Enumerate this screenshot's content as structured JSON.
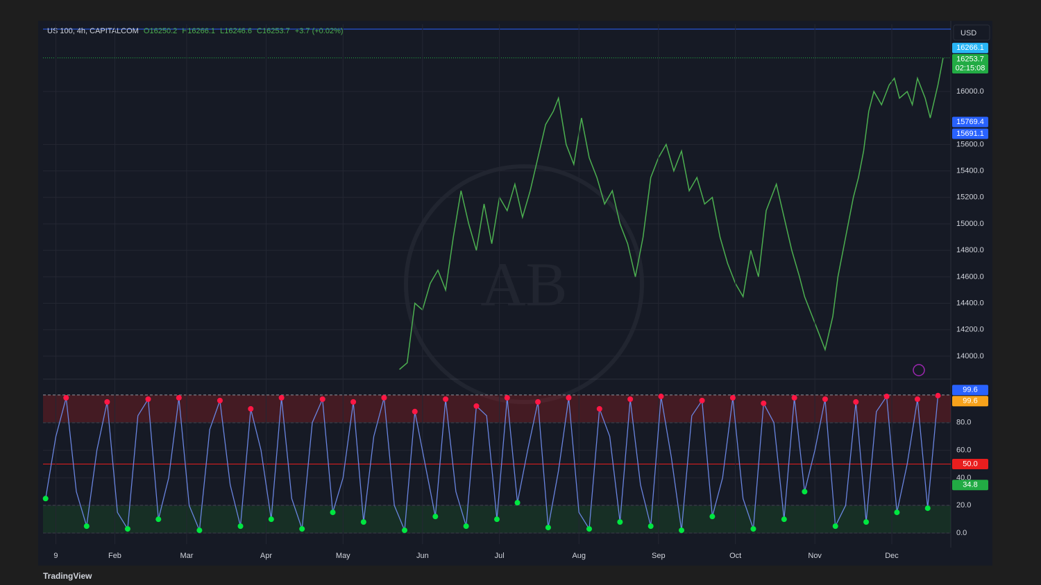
{
  "header": {
    "symbol": "US 100, 4h, CAPITALCOM",
    "open": "O16250.2",
    "high": "H16266.1",
    "low": "L16246.6",
    "close": "C16253.7",
    "change": "+3.7 (+0.02%)"
  },
  "currency": "USD",
  "brand": "TradingView",
  "chart_data": [
    {
      "type": "line",
      "color": "#4caf50",
      "x": [
        143,
        146,
        149,
        152,
        155,
        158,
        161,
        164,
        167,
        170,
        173,
        176,
        179,
        182,
        185,
        188,
        191,
        194,
        197,
        200,
        203,
        205,
        208,
        211,
        214,
        217,
        220,
        223,
        226,
        229,
        232,
        235,
        238,
        241,
        244,
        247,
        250,
        253,
        256,
        259,
        262,
        265,
        268,
        271,
        274,
        277,
        280,
        283,
        286,
        290,
        293,
        296,
        299,
        301,
        304,
        307,
        309,
        312,
        314,
        317,
        320,
        322,
        324,
        326,
        328,
        331,
        334,
        336,
        338,
        341,
        343,
        345,
        348,
        350,
        353,
        355
      ],
      "values": [
        13900,
        13950,
        14400,
        14350,
        14550,
        14650,
        14500,
        14900,
        15250,
        15000,
        14800,
        15150,
        14850,
        15200,
        15100,
        15300,
        15050,
        15250,
        15500,
        15750,
        15850,
        15950,
        15600,
        15450,
        15800,
        15500,
        15350,
        15150,
        15250,
        15000,
        14850,
        14600,
        14900,
        15350,
        15500,
        15600,
        15400,
        15550,
        15250,
        15350,
        15150,
        15200,
        14900,
        14700,
        14550,
        14450,
        14800,
        14600,
        15100,
        15300,
        15050,
        14800,
        14600,
        14450,
        14300,
        14150,
        14050,
        14300,
        14600,
        14900,
        15200,
        15350,
        15550,
        15850,
        16000,
        15900,
        16050,
        16100,
        15950,
        16000,
        15900,
        16100,
        15950,
        15800,
        16050,
        16253.7
      ],
      "xlim": [
        4,
        358
      ],
      "ylim": [
        13832,
        16508
      ],
      "yticks": [
        {
          "value": 14000,
          "label": "14000.0"
        },
        {
          "value": 14200,
          "label": "14200.0"
        },
        {
          "value": 14400,
          "label": "14400.0"
        },
        {
          "value": 14600,
          "label": "14600.0"
        },
        {
          "value": 14800,
          "label": "14800.0"
        },
        {
          "value": 15000,
          "label": "15000.0"
        },
        {
          "value": 15200,
          "label": "15200.0"
        },
        {
          "value": 15400,
          "label": "15400.0"
        },
        {
          "value": 15600,
          "label": "15600.0"
        },
        {
          "value": 16000,
          "label": "16000.0"
        }
      ],
      "tags": [
        {
          "value": 16266.1,
          "label": "16266.1",
          "color": "#29b6f6"
        },
        {
          "value": 16253.7,
          "label": "16253.7",
          "color": "#22ab44"
        },
        {
          "value": 15769.4,
          "label": "15769.4",
          "color": "#2962ff"
        },
        {
          "value": 15691.1,
          "label": "15691.1",
          "color": "#2962ff"
        }
      ],
      "countdown": "02:15:08"
    },
    {
      "type": "line",
      "color": "#6a85e0",
      "x": [
        5,
        9,
        13,
        17,
        21,
        25,
        29,
        33,
        37,
        41,
        45,
        49,
        53,
        57,
        61,
        65,
        69,
        73,
        77,
        81,
        85,
        89,
        93,
        97,
        101,
        105,
        109,
        113,
        117,
        121,
        125,
        129,
        133,
        137,
        141,
        145,
        149,
        153,
        157,
        161,
        165,
        169,
        173,
        177,
        181,
        185,
        189,
        193,
        197,
        201,
        205,
        209,
        213,
        217,
        221,
        225,
        229,
        233,
        237,
        241,
        245,
        249,
        253,
        257,
        261,
        265,
        269,
        273,
        277,
        281,
        285,
        289,
        293,
        297,
        301,
        305,
        309,
        313,
        317,
        321,
        325,
        329,
        333,
        337,
        341,
        345,
        349,
        353
      ],
      "values": [
        25,
        70,
        98,
        30,
        5,
        60,
        95,
        15,
        3,
        85,
        97,
        10,
        40,
        98,
        20,
        2,
        75,
        96,
        35,
        5,
        90,
        60,
        10,
        98,
        25,
        3,
        80,
        97,
        15,
        40,
        95,
        8,
        70,
        98,
        20,
        2,
        88,
        50,
        12,
        97,
        30,
        5,
        92,
        85,
        10,
        98,
        22,
        60,
        95,
        4,
        45,
        98,
        15,
        3,
        90,
        70,
        8,
        97,
        35,
        5,
        99,
        55,
        2,
        85,
        96,
        12,
        40,
        98,
        25,
        3,
        94,
        80,
        10,
        98,
        30,
        60,
        97,
        5,
        20,
        95,
        8,
        88,
        99,
        15,
        50,
        97,
        18,
        99.6
      ],
      "xlim": [
        4,
        358
      ],
      "ylim": [
        -8,
        111
      ],
      "yticks": [
        {
          "value": 0,
          "label": "0.0"
        },
        {
          "value": 20,
          "label": "20.0"
        },
        {
          "value": 40,
          "label": "40.0"
        },
        {
          "value": 60,
          "label": "60.0"
        },
        {
          "value": 80,
          "label": "80.0"
        }
      ],
      "levels": [
        100,
        80,
        50,
        20,
        0
      ],
      "xticks": [
        {
          "value": 9,
          "label": "9"
        },
        {
          "value": 32,
          "label": "Feb"
        },
        {
          "value": 60,
          "label": "Mar"
        },
        {
          "value": 91,
          "label": "Apr"
        },
        {
          "value": 121,
          "label": "May"
        },
        {
          "value": 152,
          "label": "Jun"
        },
        {
          "value": 182,
          "label": "Jul"
        },
        {
          "value": 213,
          "label": "Aug"
        },
        {
          "value": 244,
          "label": "Sep"
        },
        {
          "value": 274,
          "label": "Oct"
        },
        {
          "value": 305,
          "label": "Nov"
        },
        {
          "value": 335,
          "label": "Dec"
        }
      ],
      "tags": [
        {
          "value": 99.6,
          "label": "99.6",
          "color": "#2962ff"
        },
        {
          "value": 99.6,
          "label": "99.6",
          "color": "#f7a21b"
        },
        {
          "value": 50,
          "label": "50.0",
          "color": "#e91e1e"
        },
        {
          "value": 34.8,
          "label": "34.8",
          "color": "#22ab44"
        }
      ]
    }
  ]
}
